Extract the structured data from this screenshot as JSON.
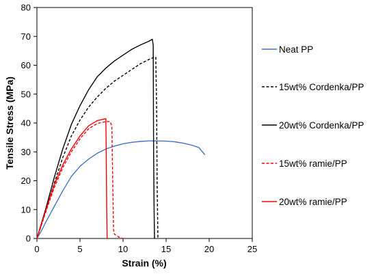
{
  "chart_data": {
    "type": "line",
    "xlabel": "Strain (%)",
    "ylabel": "Tensile Stress (MPa)",
    "xlim": [
      0,
      25
    ],
    "ylim": [
      0,
      80
    ],
    "xticks": [
      0,
      5,
      10,
      15,
      20,
      25
    ],
    "yticks": [
      0,
      10,
      20,
      30,
      40,
      50,
      60,
      70,
      80
    ],
    "x_tick_labels": [
      "0",
      "5",
      "10",
      "15",
      "20",
      "25"
    ],
    "y_tick_labels": [
      "0",
      "10",
      "20",
      "30",
      "40",
      "50",
      "60",
      "70",
      "80"
    ],
    "grid": false,
    "legend_position": "right",
    "series": [
      {
        "name": "Neat PP",
        "color": "#4472c4",
        "dash": "solid",
        "points": [
          [
            0,
            0
          ],
          [
            0.5,
            2.5
          ],
          [
            1,
            5.5
          ],
          [
            2,
            11
          ],
          [
            3,
            16.5
          ],
          [
            4,
            21.5
          ],
          [
            5,
            25
          ],
          [
            6,
            27.5
          ],
          [
            7,
            29.5
          ],
          [
            8,
            31
          ],
          [
            9,
            32
          ],
          [
            10,
            32.8
          ],
          [
            11,
            33.3
          ],
          [
            12,
            33.6
          ],
          [
            13,
            33.8
          ],
          [
            14,
            33.8
          ],
          [
            15,
            33.7
          ],
          [
            16,
            33.5
          ],
          [
            17,
            33
          ],
          [
            18,
            32.3
          ],
          [
            18.8,
            31.5
          ],
          [
            19.5,
            29
          ]
        ]
      },
      {
        "name": "15wt% Cordenka/PP",
        "color": "#000000",
        "dash": "dashed",
        "points": [
          [
            0,
            0
          ],
          [
            1,
            9
          ],
          [
            2,
            19
          ],
          [
            3,
            28
          ],
          [
            4,
            35.5
          ],
          [
            5,
            41
          ],
          [
            6,
            45.5
          ],
          [
            7,
            49
          ],
          [
            8,
            52
          ],
          [
            9,
            54.5
          ],
          [
            10,
            56.5
          ],
          [
            11,
            58.5
          ],
          [
            12,
            60.5
          ],
          [
            13,
            62
          ],
          [
            13.6,
            62.8
          ],
          [
            13.8,
            62.8
          ],
          [
            13.9,
            45
          ],
          [
            13.95,
            20
          ],
          [
            14,
            10
          ],
          [
            14.05,
            0
          ]
        ]
      },
      {
        "name": "20wt% Cordenka/PP",
        "color": "#000000",
        "dash": "solid",
        "points": [
          [
            0,
            0
          ],
          [
            1,
            10
          ],
          [
            2,
            21
          ],
          [
            3,
            31
          ],
          [
            4,
            39.5
          ],
          [
            5,
            46
          ],
          [
            6,
            51.5
          ],
          [
            7,
            56
          ],
          [
            8,
            59
          ],
          [
            9,
            61.5
          ],
          [
            10,
            63.5
          ],
          [
            11,
            65.5
          ],
          [
            12,
            67
          ],
          [
            13,
            68.3
          ],
          [
            13.4,
            69
          ],
          [
            13.5,
            67
          ],
          [
            13.55,
            30
          ],
          [
            13.6,
            10
          ],
          [
            13.65,
            0
          ]
        ]
      },
      {
        "name": "15wt% ramie/PP",
        "color": "#ff0000",
        "dash": "dashed",
        "points": [
          [
            0,
            0
          ],
          [
            1,
            9
          ],
          [
            2,
            17.5
          ],
          [
            3,
            24.5
          ],
          [
            4,
            30
          ],
          [
            5,
            34.5
          ],
          [
            6,
            38
          ],
          [
            7,
            39.8
          ],
          [
            8,
            40.5
          ],
          [
            8.5,
            40.5
          ],
          [
            8.7,
            39
          ],
          [
            8.8,
            20
          ],
          [
            8.9,
            3
          ],
          [
            9,
            1.5
          ],
          [
            9.5,
            0.5
          ],
          [
            10,
            0
          ]
        ]
      },
      {
        "name": "20wt% ramie/PP",
        "color": "#ff0000",
        "dash": "solid",
        "points": [
          [
            0,
            0
          ],
          [
            1,
            9.5
          ],
          [
            2,
            18.5
          ],
          [
            3,
            25.5
          ],
          [
            4,
            31
          ],
          [
            5,
            35.5
          ],
          [
            6,
            39
          ],
          [
            7,
            40.8
          ],
          [
            8,
            41.5
          ],
          [
            8.05,
            30
          ],
          [
            8.1,
            10
          ],
          [
            8.15,
            0
          ]
        ]
      }
    ]
  }
}
